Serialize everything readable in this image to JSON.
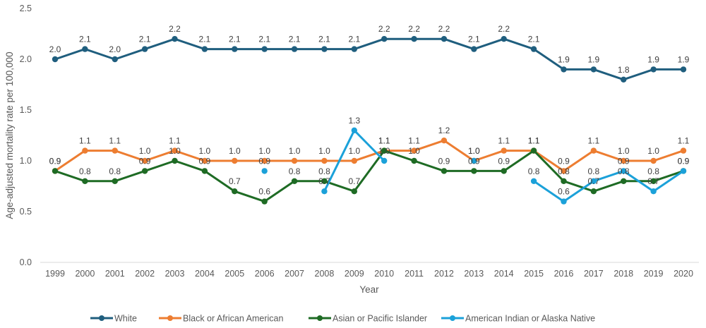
{
  "chart_data": {
    "type": "line",
    "title": "",
    "xlabel": "Year",
    "ylabel": "Age-adjusted mortality rate per 100,000",
    "ylim": [
      0,
      2.5
    ],
    "yticks": [
      "0.0",
      "0.5",
      "1.0",
      "1.5",
      "2.0",
      "2.5"
    ],
    "grid": "horizontal baseline only",
    "legend_position": "bottom",
    "categories": [
      "1999",
      "2000",
      "2001",
      "2002",
      "2003",
      "2004",
      "2005",
      "2006",
      "2007",
      "2008",
      "2009",
      "2010",
      "2011",
      "2012",
      "2013",
      "2014",
      "2015",
      "2016",
      "2017",
      "2018",
      "2019",
      "2020"
    ],
    "series": [
      {
        "name": "White",
        "color": "#1f5e7e",
        "values": [
          2.0,
          2.1,
          2.0,
          2.1,
          2.2,
          2.1,
          2.1,
          2.1,
          2.1,
          2.1,
          2.1,
          2.2,
          2.2,
          2.2,
          2.1,
          2.2,
          2.1,
          1.9,
          1.9,
          1.8,
          1.9,
          1.9
        ]
      },
      {
        "name": "Black or African American",
        "color": "#ed7d31",
        "values": [
          0.9,
          1.1,
          1.1,
          1.0,
          1.1,
          1.0,
          1.0,
          1.0,
          1.0,
          1.0,
          1.0,
          1.1,
          1.1,
          1.2,
          1.0,
          1.1,
          1.1,
          0.9,
          1.1,
          1.0,
          1.0,
          1.1
        ]
      },
      {
        "name": "Asian or Pacific Islander",
        "color": "#1e6b24",
        "values": [
          0.9,
          0.8,
          0.8,
          0.9,
          1.0,
          0.9,
          0.7,
          0.6,
          0.8,
          0.8,
          0.7,
          1.1,
          1.0,
          0.9,
          0.9,
          0.9,
          1.1,
          0.8,
          0.7,
          0.8,
          0.8,
          0.9
        ]
      },
      {
        "name": "American Indian or Alaska Native",
        "color": "#1ba1d9",
        "values": [
          null,
          null,
          null,
          null,
          null,
          null,
          null,
          0.9,
          null,
          0.7,
          1.3,
          1.0,
          null,
          null,
          1.0,
          null,
          0.8,
          0.6,
          0.8,
          0.9,
          0.7,
          0.9
        ]
      }
    ]
  }
}
